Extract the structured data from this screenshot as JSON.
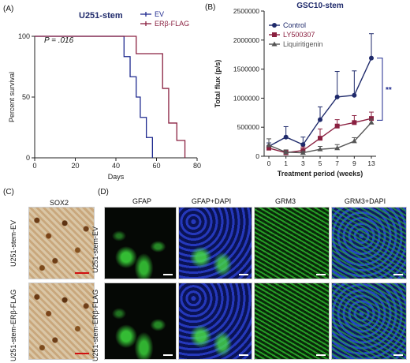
{
  "panel_a": {
    "label": "(A)",
    "title": "U251-stem",
    "pvalue": "P = .016",
    "legend": [
      "EV",
      "ERβ-FLAG"
    ],
    "colors": {
      "EV": "#1f2a8f",
      "ERb": "#8a2040"
    },
    "ylabel": "Percent survival",
    "xlabel": "Days",
    "xticks": [
      "0",
      "20",
      "40",
      "60",
      "80"
    ],
    "yticks": [
      "0",
      "50",
      "100"
    ]
  },
  "panel_b": {
    "label": "(B)",
    "title": "GSC10-stem",
    "ylabel": "Total flux (p/s)",
    "xlabel": "Treatment period  (weeks)",
    "xticks": [
      "0",
      "1",
      "3",
      "5",
      "7",
      "9",
      "13"
    ],
    "yticks": [
      "0",
      "500000",
      "1000000",
      "1500000",
      "2000000",
      "2500000"
    ],
    "legend": [
      "Control",
      "LY500307",
      "Liquiritigenin"
    ],
    "colors": {
      "Control": "#1f2a6b",
      "LY500307": "#8a2040",
      "Liquiritigenin": "#555555"
    },
    "significance": "**"
  },
  "panel_c": {
    "label": "(C)",
    "stain": "SOX2",
    "rows": [
      "U251-stem-EV",
      "U251-stem-ERβ-FLAG"
    ]
  },
  "panel_d": {
    "label": "(D)",
    "columns": [
      "GFAP",
      "GFAP+DAPI",
      "GRM3",
      "GRM3+DAPI"
    ],
    "rows": [
      "U251-stem-EV",
      "U251-stem-ERβ-FLAG"
    ]
  },
  "chart_data": [
    {
      "type": "line",
      "title": "U251-stem",
      "xlabel": "Days",
      "ylabel": "Percent survival",
      "xlim": [
        0,
        80
      ],
      "ylim": [
        0,
        100
      ],
      "series": [
        {
          "name": "EV",
          "step_x": [
            0,
            42,
            44,
            47,
            50,
            52,
            55,
            58
          ],
          "step_y": [
            100,
            100,
            83.3,
            66.7,
            50,
            33.3,
            16.7,
            0
          ]
        },
        {
          "name": "ERβ-FLAG",
          "step_x": [
            0,
            47,
            50,
            60,
            63,
            66,
            70,
            74
          ],
          "step_y": [
            100,
            100,
            85.7,
            85.7,
            57.1,
            28.6,
            14.3,
            0
          ]
        }
      ],
      "annotations": [
        "P = .016"
      ]
    },
    {
      "type": "line",
      "title": "GSC10-stem",
      "xlabel": "Treatment period  (weeks)",
      "ylabel": "Total flux (p/s)",
      "categories": [
        "0",
        "1",
        "3",
        "5",
        "7",
        "9",
        "13"
      ],
      "ylim": [
        0,
        2500000
      ],
      "series": [
        {
          "name": "Control",
          "values": [
            170000,
            330000,
            200000,
            630000,
            1020000,
            1050000,
            1690000
          ],
          "errors": [
            60000,
            180000,
            130000,
            220000,
            440000,
            420000,
            420000
          ]
        },
        {
          "name": "LY500307",
          "values": [
            140000,
            60000,
            100000,
            310000,
            520000,
            580000,
            650000
          ],
          "errors": [
            40000,
            40000,
            60000,
            160000,
            110000,
            120000,
            110000
          ]
        },
        {
          "name": "Liquiritigenin",
          "values": [
            190000,
            70000,
            60000,
            120000,
            140000,
            260000,
            580000
          ],
          "errors": [
            110000,
            40000,
            30000,
            50000,
            60000,
            60000,
            60000
          ]
        }
      ],
      "annotations": [
        "**"
      ]
    }
  ]
}
